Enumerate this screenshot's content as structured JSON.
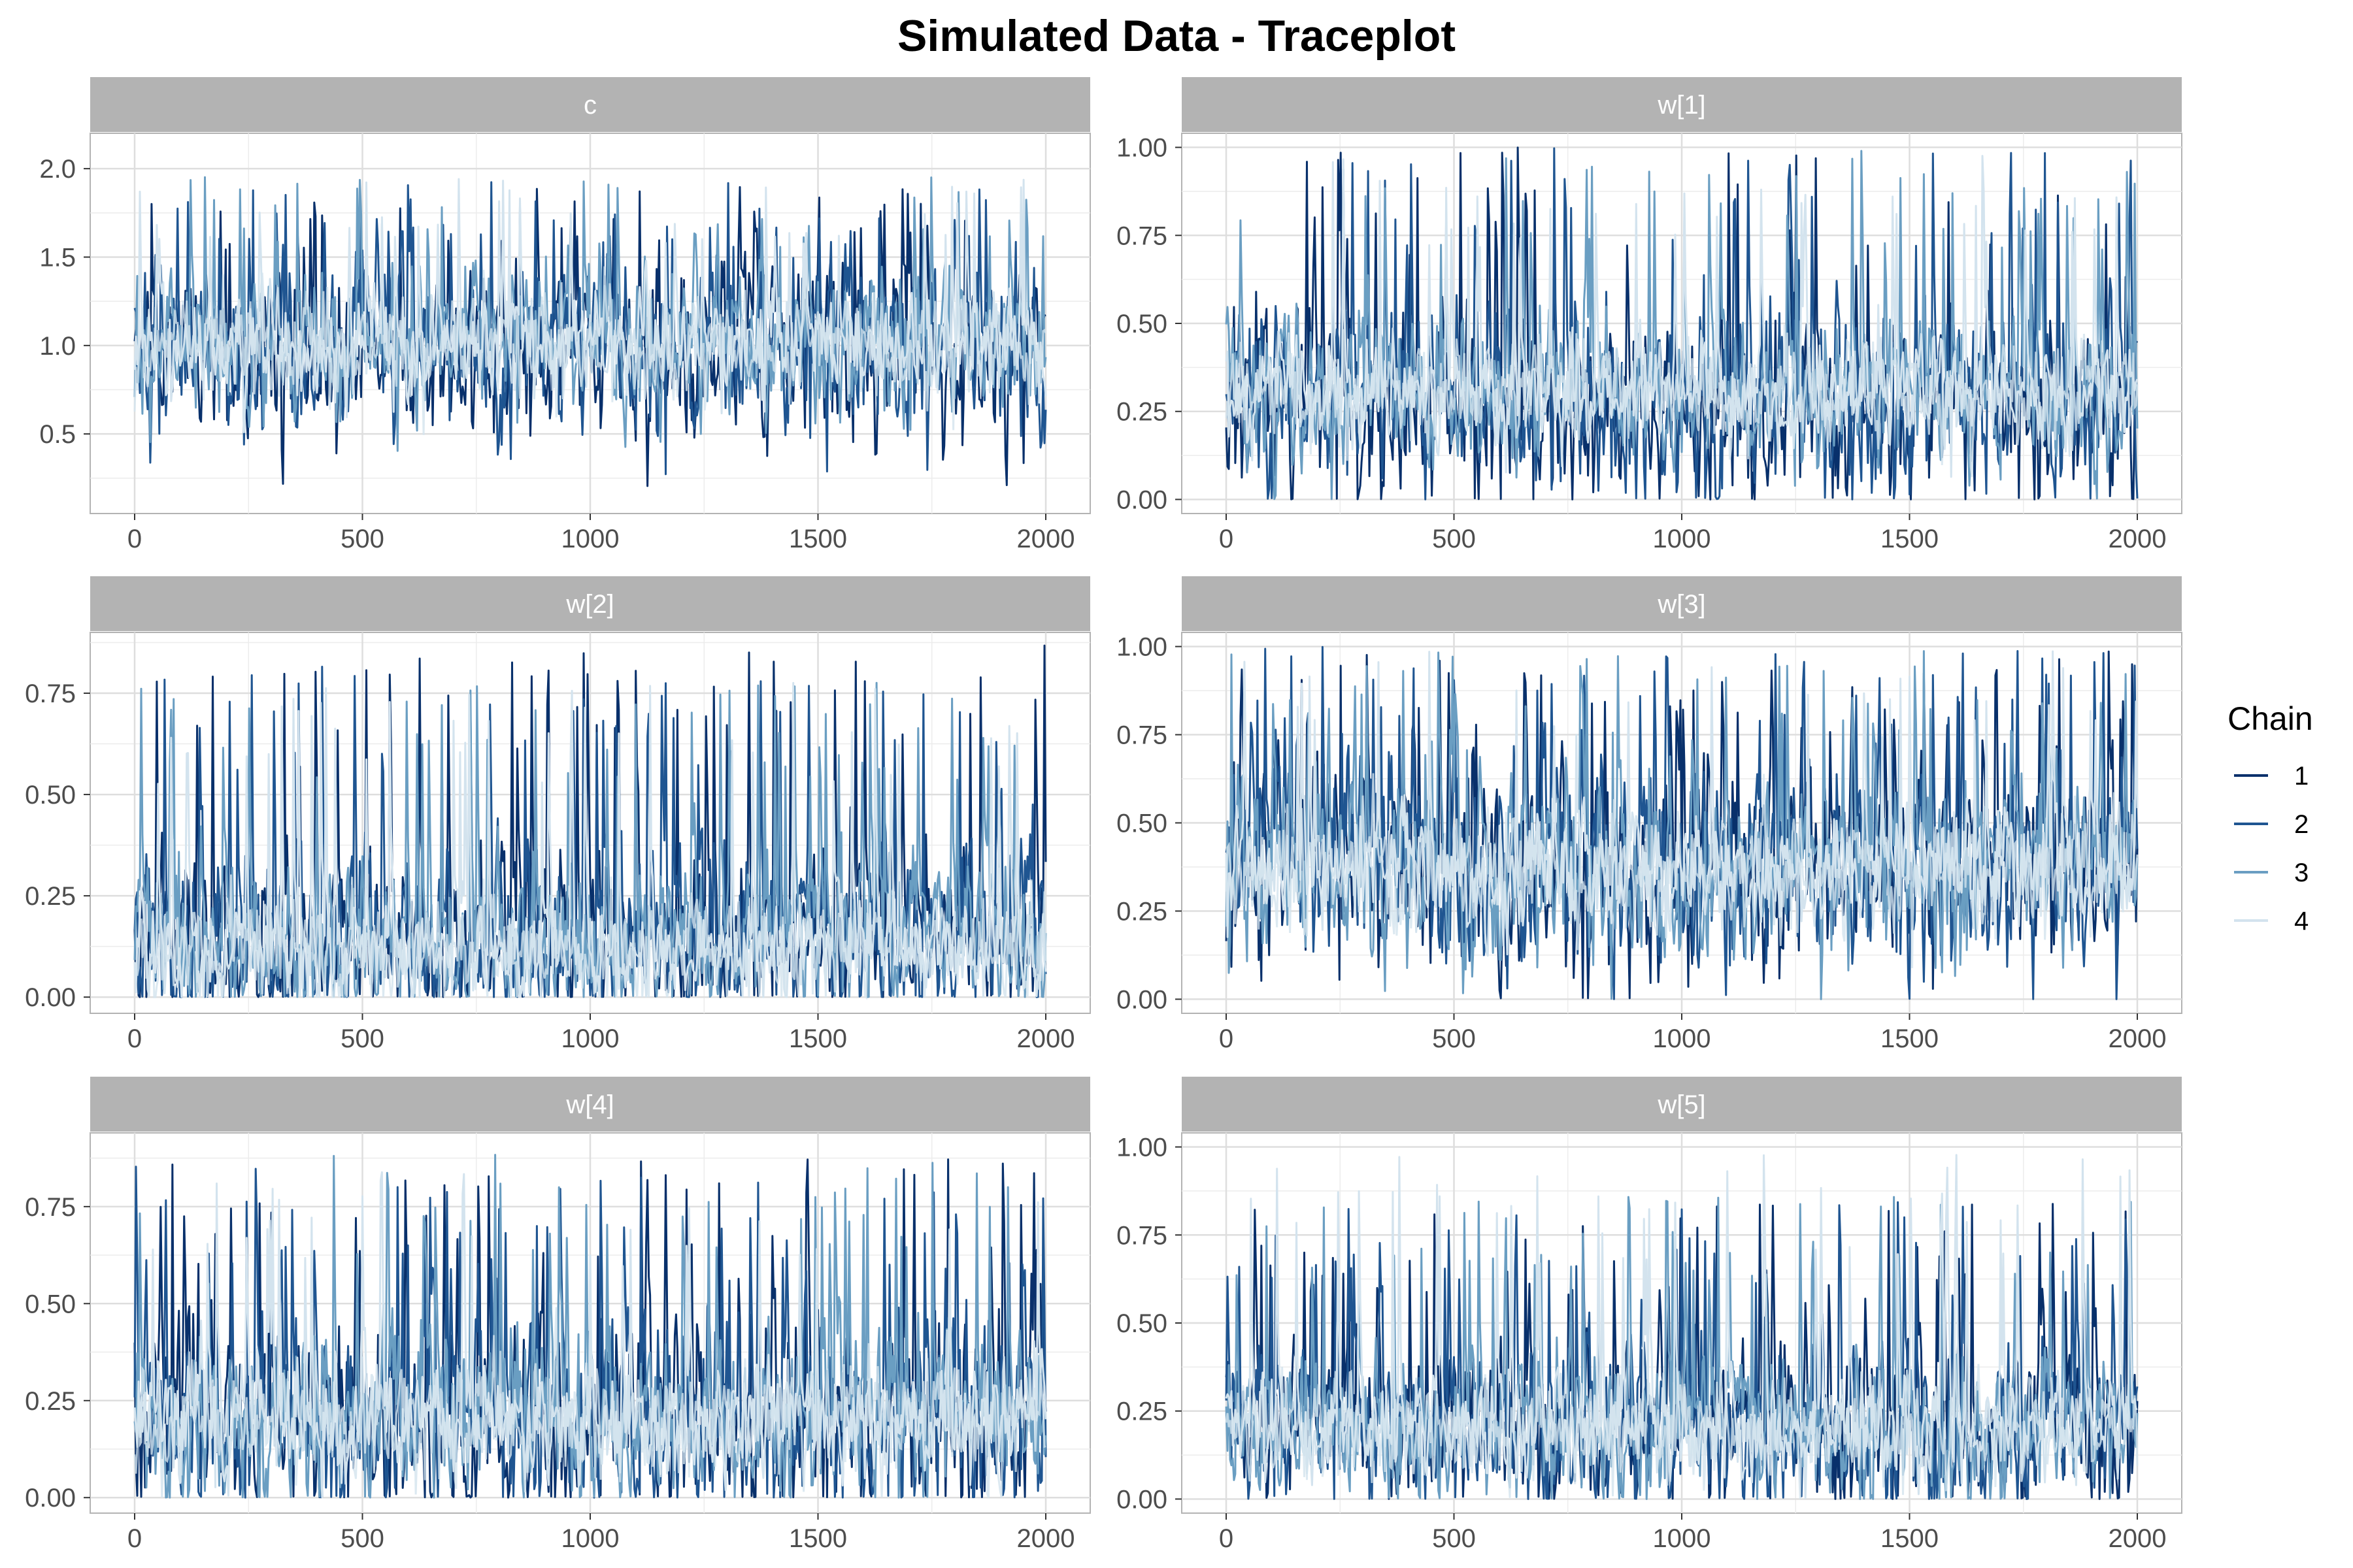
{
  "chart_data": {
    "type": "line",
    "title": "Simulated Data - Traceplot",
    "legend": {
      "title": "Chain",
      "position": "right",
      "entries": [
        "1",
        "2",
        "3",
        "4"
      ]
    },
    "series_colors": [
      "#08306b",
      "#1f5591",
      "#6a9ec2",
      "#d3e3ee"
    ],
    "grid": true,
    "x_range": [
      0,
      2000
    ],
    "x_ticks": [
      0,
      500,
      1000,
      1500,
      2000
    ],
    "facets": [
      {
        "label": "c",
        "ylim": [
          0.05,
          2.2
        ],
        "y_ticks": [
          0.5,
          1.0,
          1.5,
          2.0
        ],
        "y_tick_labels": [
          "0.5",
          "1.0",
          "1.5",
          "2.0"
        ],
        "chains": [
          {
            "chain": "1",
            "mean": 0.95,
            "sd": 0.36,
            "min": 0.2,
            "max": 1.92
          },
          {
            "chain": "2",
            "mean": 1.0,
            "sd": 0.36,
            "min": 0.2,
            "max": 1.93
          },
          {
            "chain": "3",
            "mean": 1.0,
            "sd": 0.33,
            "min": 0.13,
            "max": 1.96
          },
          {
            "chain": "4",
            "mean": 1.0,
            "sd": 0.2,
            "min": 0.13,
            "max": 1.95
          }
        ]
      },
      {
        "label": "w[1]",
        "ylim": [
          -0.04,
          1.04
        ],
        "y_ticks": [
          0,
          0.25,
          0.5,
          0.75,
          1.0
        ],
        "y_tick_labels": [
          "0.00",
          "0.25",
          "0.50",
          "0.75",
          "1.00"
        ],
        "chains": [
          {
            "chain": "1",
            "mean": 0.26,
            "sd": 0.2,
            "min": 0.0,
            "max": 1.0
          },
          {
            "chain": "2",
            "mean": 0.28,
            "sd": 0.2,
            "min": 0.0,
            "max": 1.0
          },
          {
            "chain": "3",
            "mean": 0.3,
            "sd": 0.16,
            "min": 0.0,
            "max": 0.99
          },
          {
            "chain": "4",
            "mean": 0.3,
            "sd": 0.1,
            "min": 0.0,
            "max": 0.98
          }
        ]
      },
      {
        "label": "w[2]",
        "ylim": [
          -0.04,
          0.9
        ],
        "y_ticks": [
          0,
          0.25,
          0.5,
          0.75
        ],
        "y_tick_labels": [
          "0.00",
          "0.25",
          "0.50",
          "0.75"
        ],
        "chains": [
          {
            "chain": "1",
            "mean": 0.14,
            "sd": 0.16,
            "min": 0.0,
            "max": 0.87
          },
          {
            "chain": "2",
            "mean": 0.14,
            "sd": 0.16,
            "min": 0.0,
            "max": 0.83
          },
          {
            "chain": "3",
            "mean": 0.13,
            "sd": 0.14,
            "min": 0.0,
            "max": 0.8
          },
          {
            "chain": "4",
            "mean": 0.12,
            "sd": 0.09,
            "min": 0.0,
            "max": 0.78
          }
        ]
      },
      {
        "label": "w[3]",
        "ylim": [
          -0.04,
          1.04
        ],
        "y_ticks": [
          0,
          0.25,
          0.5,
          0.75,
          1.0
        ],
        "y_tick_labels": [
          "0.00",
          "0.25",
          "0.50",
          "0.75",
          "1.00"
        ],
        "chains": [
          {
            "chain": "1",
            "mean": 0.38,
            "sd": 0.24,
            "min": 0.0,
            "max": 1.0
          },
          {
            "chain": "2",
            "mean": 0.38,
            "sd": 0.24,
            "min": 0.0,
            "max": 1.0
          },
          {
            "chain": "3",
            "mean": 0.38,
            "sd": 0.2,
            "min": 0.0,
            "max": 0.99
          },
          {
            "chain": "4",
            "mean": 0.36,
            "sd": 0.12,
            "min": 0.0,
            "max": 0.99
          }
        ]
      },
      {
        "label": "w[4]",
        "ylim": [
          -0.04,
          0.94
        ],
        "y_ticks": [
          0,
          0.25,
          0.5,
          0.75
        ],
        "y_tick_labels": [
          "0.00",
          "0.25",
          "0.50",
          "0.75"
        ],
        "chains": [
          {
            "chain": "1",
            "mean": 0.2,
            "sd": 0.2,
            "min": 0.0,
            "max": 0.88
          },
          {
            "chain": "2",
            "mean": 0.2,
            "sd": 0.2,
            "min": 0.0,
            "max": 0.86
          },
          {
            "chain": "3",
            "mean": 0.2,
            "sd": 0.17,
            "min": 0.0,
            "max": 0.91
          },
          {
            "chain": "4",
            "mean": 0.2,
            "sd": 0.11,
            "min": 0.0,
            "max": 0.86
          }
        ]
      },
      {
        "label": "w[5]",
        "ylim": [
          -0.04,
          1.04
        ],
        "y_ticks": [
          0,
          0.25,
          0.5,
          0.75,
          1.0
        ],
        "y_tick_labels": [
          "0.00",
          "0.25",
          "0.50",
          "0.75",
          "1.00"
        ],
        "chains": [
          {
            "chain": "1",
            "mean": 0.2,
            "sd": 0.18,
            "min": 0.0,
            "max": 0.84
          },
          {
            "chain": "2",
            "mean": 0.2,
            "sd": 0.18,
            "min": 0.0,
            "max": 0.85
          },
          {
            "chain": "3",
            "mean": 0.2,
            "sd": 0.16,
            "min": 0.0,
            "max": 0.86
          },
          {
            "chain": "4",
            "mean": 0.2,
            "sd": 0.1,
            "min": 0.0,
            "max": 0.98
          }
        ]
      }
    ]
  }
}
